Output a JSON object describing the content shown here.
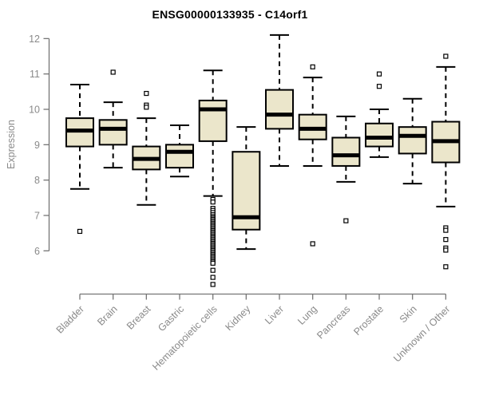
{
  "chart_data": {
    "type": "boxplot",
    "title": "ENSG00000133935 - C14orf1",
    "ylabel": "Expression",
    "xlabel": "",
    "ylim": [
      6,
      12
    ],
    "yticks": [
      6,
      7,
      8,
      9,
      10,
      11,
      12
    ],
    "grid": false,
    "legend": false,
    "categories": [
      "Bladder",
      "Brain",
      "Breast",
      "Gastric",
      "Hematopoietic cells",
      "Kidney",
      "Liver",
      "Lung",
      "Pancreas",
      "Prostate",
      "Skin",
      "Unknown / Other"
    ],
    "boxes": [
      {
        "category": "Bladder",
        "whisker_low": 7.75,
        "q1": 8.95,
        "median": 9.4,
        "q3": 9.75,
        "whisker_high": 10.7,
        "outliers": [
          6.55
        ]
      },
      {
        "category": "Brain",
        "whisker_low": 8.35,
        "q1": 9.0,
        "median": 9.45,
        "q3": 9.7,
        "whisker_high": 10.2,
        "outliers": [
          11.05
        ]
      },
      {
        "category": "Breast",
        "whisker_low": 7.3,
        "q1": 8.3,
        "median": 8.6,
        "q3": 8.95,
        "whisker_high": 9.75,
        "outliers": [
          10.45,
          10.12,
          10.06
        ]
      },
      {
        "category": "Gastric",
        "whisker_low": 8.1,
        "q1": 8.35,
        "median": 8.8,
        "q3": 9.0,
        "whisker_high": 9.55,
        "outliers": []
      },
      {
        "category": "Hematopoietic cells",
        "whisker_low": 7.55,
        "q1": 9.1,
        "median": 10.0,
        "q3": 10.25,
        "whisker_high": 11.1,
        "outliers": [
          7.45,
          7.38,
          7.2,
          7.14,
          7.08,
          7.02,
          6.97,
          6.93,
          6.89,
          6.85,
          6.81,
          6.77,
          6.73,
          6.69,
          6.65,
          6.61,
          6.57,
          6.53,
          6.49,
          6.45,
          6.41,
          6.37,
          6.33,
          6.29,
          6.25,
          6.21,
          6.17,
          6.13,
          6.09,
          6.05,
          6.01,
          5.97,
          5.93,
          5.89,
          5.85,
          5.81,
          5.77,
          5.73,
          5.69,
          5.65,
          5.45,
          5.25,
          5.05
        ]
      },
      {
        "category": "Kidney",
        "whisker_low": 6.05,
        "q1": 6.6,
        "median": 6.95,
        "q3": 8.8,
        "whisker_high": 9.5,
        "outliers": []
      },
      {
        "category": "Liver",
        "whisker_low": 8.4,
        "q1": 9.45,
        "median": 9.85,
        "q3": 10.55,
        "whisker_high": 12.1,
        "outliers": []
      },
      {
        "category": "Lung",
        "whisker_low": 8.4,
        "q1": 9.15,
        "median": 9.45,
        "q3": 9.85,
        "whisker_high": 10.9,
        "outliers": [
          11.2,
          6.2
        ]
      },
      {
        "category": "Pancreas",
        "whisker_low": 7.95,
        "q1": 8.4,
        "median": 8.7,
        "q3": 9.2,
        "whisker_high": 9.8,
        "outliers": [
          6.85
        ]
      },
      {
        "category": "Prostate",
        "whisker_low": 8.65,
        "q1": 8.95,
        "median": 9.2,
        "q3": 9.6,
        "whisker_high": 10.0,
        "outliers": [
          11.0,
          10.65
        ]
      },
      {
        "category": "Skin",
        "whisker_low": 7.9,
        "q1": 8.75,
        "median": 9.25,
        "q3": 9.5,
        "whisker_high": 10.3,
        "outliers": []
      },
      {
        "category": "Unknown / Other",
        "whisker_low": 7.25,
        "q1": 8.5,
        "median": 9.1,
        "q3": 9.65,
        "whisker_high": 11.2,
        "outliers": [
          11.5,
          6.65,
          6.58,
          6.32,
          6.08,
          6.02,
          5.55
        ]
      }
    ],
    "colors": {
      "box_fill": "#EBE6CB",
      "box_stroke": "#000000",
      "median": "#000000",
      "whisker": "#000000",
      "outlier_stroke": "#000000",
      "axis": "#757575",
      "tick_label": "#8a8a8a",
      "title": "#000000"
    }
  }
}
